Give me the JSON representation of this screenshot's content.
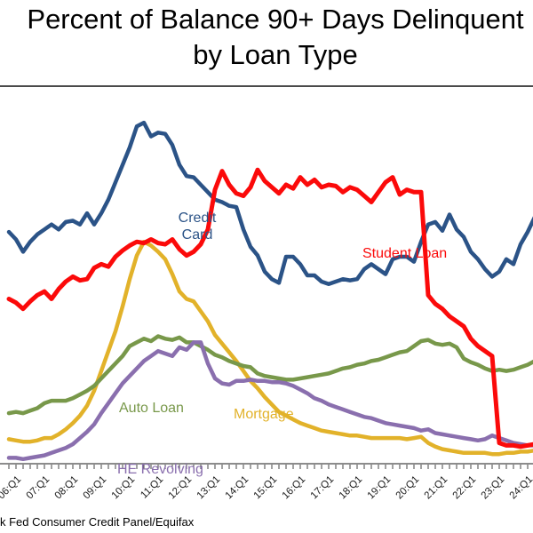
{
  "title": {
    "line1": "Percent of Balance 90+ Days Delinquent",
    "line2": "by Loan Type"
  },
  "source_note": "k Fed Consumer Credit Panel/Equifax",
  "colors": {
    "credit_card": "#2b5387",
    "student_loan": "#fb0a0a",
    "mortgage": "#e2b22a",
    "auto_loan": "#78984a",
    "he_revolving": "#8a6fae",
    "axis": "#8c8c8c",
    "tick": "#444444"
  },
  "chart_data": {
    "type": "line",
    "title": "Percent of Balance 90+ Days Delinquent by Loan Type",
    "unit": "percent",
    "frequency": "quarterly",
    "x_start": "2005:Q3",
    "x_end": "2024:Q1",
    "x_tick_labels": [
      "06:Q1",
      "07:Q1",
      "08:Q1",
      "09:Q1",
      "10:Q1",
      "11:Q1",
      "12:Q1",
      "13:Q1",
      "14:Q1",
      "15:Q1",
      "16:Q1",
      "17:Q1",
      "18:Q1",
      "19:Q1",
      "20:Q1",
      "21:Q1",
      "22:Q1",
      "23:Q1",
      "24:Q1"
    ],
    "ylim": [
      0,
      14.7
    ],
    "y_axis_visible": false,
    "grid": false,
    "legend_position": "inline-labels",
    "series": [
      {
        "name": "Mortgage",
        "color": "#e2b22a",
        "values": [
          0.95,
          0.9,
          0.85,
          0.85,
          0.9,
          1.0,
          1.0,
          1.15,
          1.35,
          1.6,
          1.9,
          2.3,
          2.9,
          3.7,
          4.5,
          5.3,
          6.3,
          7.4,
          8.35,
          8.9,
          8.75,
          8.5,
          8.2,
          7.6,
          6.9,
          6.6,
          6.5,
          6.1,
          5.7,
          5.15,
          4.8,
          4.45,
          4.1,
          3.7,
          3.3,
          3.0,
          2.65,
          2.35,
          2.05,
          1.9,
          1.75,
          1.6,
          1.5,
          1.4,
          1.3,
          1.25,
          1.2,
          1.15,
          1.1,
          1.1,
          1.05,
          1.0,
          1.0,
          1.0,
          1.0,
          1.0,
          0.95,
          1.0,
          1.05,
          0.8,
          0.65,
          0.55,
          0.5,
          0.45,
          0.4,
          0.4,
          0.4,
          0.4,
          0.35,
          0.35,
          0.4,
          0.4,
          0.45,
          0.45,
          0.5
        ]
      },
      {
        "name": "Auto Loan",
        "color": "#78984a",
        "values": [
          2.0,
          2.05,
          2.0,
          2.1,
          2.2,
          2.4,
          2.5,
          2.5,
          2.5,
          2.6,
          2.75,
          2.9,
          3.1,
          3.4,
          3.7,
          4.0,
          4.3,
          4.7,
          4.85,
          5.0,
          4.9,
          5.1,
          5.0,
          4.95,
          5.05,
          4.85,
          4.85,
          4.7,
          4.55,
          4.35,
          4.25,
          4.1,
          4.0,
          3.9,
          3.85,
          3.6,
          3.5,
          3.45,
          3.4,
          3.35,
          3.35,
          3.4,
          3.45,
          3.5,
          3.55,
          3.6,
          3.7,
          3.8,
          3.85,
          3.95,
          4.0,
          4.1,
          4.15,
          4.25,
          4.35,
          4.45,
          4.5,
          4.7,
          4.9,
          4.95,
          4.8,
          4.75,
          4.8,
          4.65,
          4.2,
          4.05,
          3.95,
          3.8,
          3.7,
          3.75,
          3.7,
          3.75,
          3.85,
          3.95,
          4.1
        ]
      },
      {
        "name": "HE Revolving",
        "color": "#8a6fae",
        "values": [
          0.2,
          0.2,
          0.15,
          0.2,
          0.25,
          0.3,
          0.4,
          0.5,
          0.6,
          0.75,
          1.0,
          1.25,
          1.55,
          2.0,
          2.4,
          2.8,
          3.2,
          3.5,
          3.8,
          4.1,
          4.3,
          4.5,
          4.4,
          4.3,
          4.65,
          4.55,
          4.85,
          4.85,
          4.0,
          3.4,
          3.2,
          3.15,
          3.3,
          3.3,
          3.35,
          3.3,
          3.3,
          3.25,
          3.25,
          3.2,
          3.1,
          2.95,
          2.8,
          2.6,
          2.5,
          2.35,
          2.25,
          2.15,
          2.05,
          1.95,
          1.85,
          1.8,
          1.7,
          1.6,
          1.55,
          1.5,
          1.45,
          1.4,
          1.3,
          1.35,
          1.2,
          1.15,
          1.1,
          1.05,
          1.0,
          0.95,
          0.9,
          0.95,
          1.1,
          1.0,
          0.9,
          0.8,
          0.75,
          0.7,
          0.7
        ]
      },
      {
        "name": "Credit Card",
        "color": "#2b5387",
        "values": [
          9.3,
          9.0,
          8.5,
          8.9,
          9.2,
          9.4,
          9.6,
          9.4,
          9.7,
          9.75,
          9.6,
          10.05,
          9.6,
          10.05,
          10.6,
          11.3,
          12.0,
          12.7,
          13.55,
          13.7,
          13.15,
          13.3,
          13.25,
          12.8,
          12.0,
          11.55,
          11.5,
          11.2,
          10.9,
          10.6,
          10.5,
          10.35,
          10.3,
          9.4,
          8.7,
          8.35,
          7.7,
          7.4,
          7.25,
          8.3,
          8.3,
          8.0,
          7.55,
          7.55,
          7.3,
          7.2,
          7.3,
          7.4,
          7.35,
          7.4,
          7.8,
          8.0,
          7.8,
          7.6,
          8.2,
          8.3,
          8.3,
          8.1,
          8.9,
          9.6,
          9.7,
          9.35,
          10.0,
          9.4,
          9.1,
          8.5,
          8.2,
          7.8,
          7.5,
          7.7,
          8.2,
          8.0,
          8.8,
          9.3,
          9.9
        ]
      },
      {
        "name": "Student Loan",
        "color": "#fb0a0a",
        "values": [
          6.6,
          6.45,
          6.2,
          6.5,
          6.75,
          6.9,
          6.6,
          7.0,
          7.3,
          7.5,
          7.35,
          7.4,
          7.85,
          8.0,
          7.9,
          8.3,
          8.55,
          8.75,
          8.9,
          8.85,
          9.0,
          8.85,
          8.8,
          9.0,
          8.6,
          8.35,
          8.5,
          8.8,
          9.4,
          11.0,
          11.75,
          11.2,
          10.85,
          10.75,
          11.1,
          11.8,
          11.35,
          11.1,
          10.85,
          11.2,
          11.05,
          11.5,
          11.2,
          11.4,
          11.1,
          11.2,
          11.15,
          10.9,
          11.1,
          11.0,
          10.75,
          10.5,
          10.9,
          11.3,
          11.5,
          10.8,
          11.0,
          10.9,
          10.9,
          6.75,
          6.4,
          6.2,
          5.9,
          5.7,
          5.5,
          5.0,
          4.7,
          4.5,
          4.3,
          0.8,
          0.7,
          0.7,
          0.65,
          0.7,
          0.75
        ]
      }
    ],
    "annotations": [
      {
        "id": "credit-card-label",
        "text": "Credit Card"
      },
      {
        "id": "student-loan-label",
        "text": "Student Loan"
      },
      {
        "id": "auto-loan-label",
        "text": "Auto Loan"
      },
      {
        "id": "mortgage-label",
        "text": "Mortgage"
      },
      {
        "id": "he-revolving-label",
        "text": "HE Revolving"
      }
    ]
  }
}
